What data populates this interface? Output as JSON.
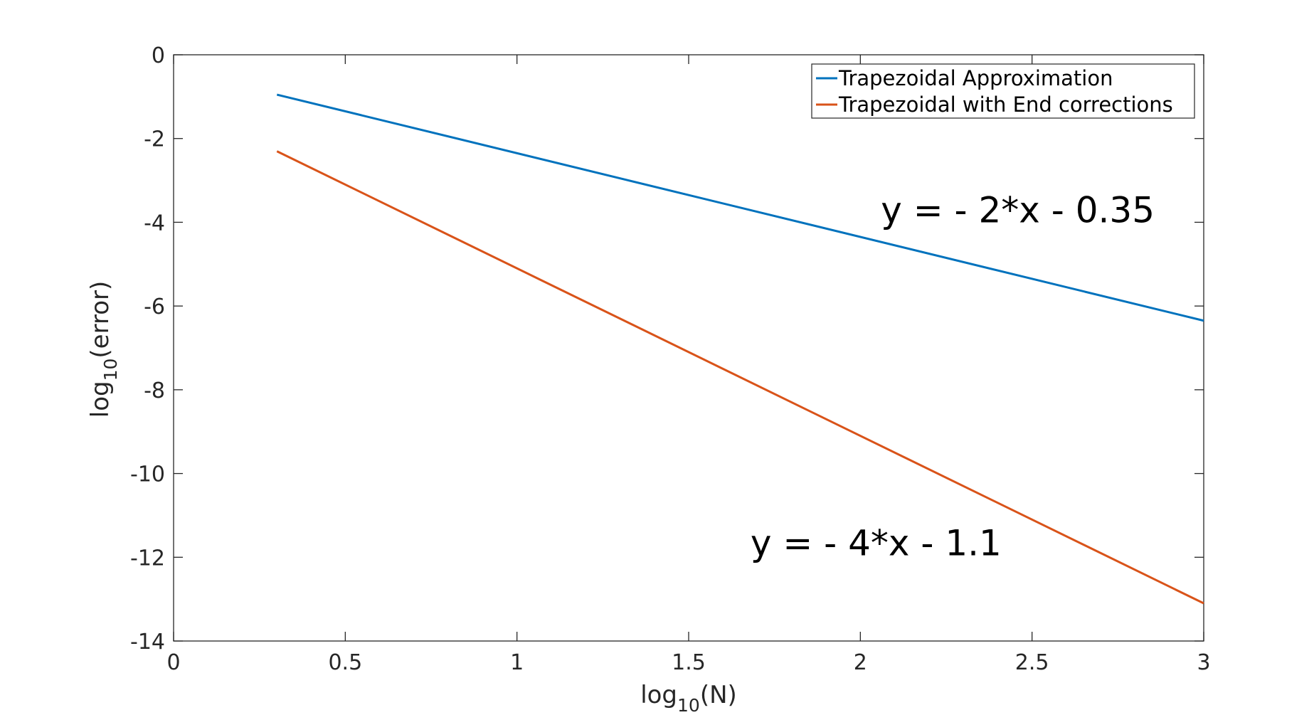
{
  "chart_data": {
    "type": "line",
    "title": "",
    "xlabel": {
      "base": "log",
      "subscript": "10",
      "suffix": "(N)"
    },
    "ylabel": {
      "base": "log",
      "subscript": "10",
      "suffix": "(error)"
    },
    "xlim": [
      0,
      3
    ],
    "ylim": [
      -14,
      0
    ],
    "xticks": [
      0,
      0.5,
      1,
      1.5,
      2,
      2.5,
      3
    ],
    "xtick_labels": [
      "0",
      "0.5",
      "1",
      "1.5",
      "2",
      "2.5",
      "3"
    ],
    "yticks": [
      0,
      -2,
      -4,
      -6,
      -8,
      -10,
      -12,
      -14
    ],
    "ytick_labels": [
      "0",
      "-2",
      "-4",
      "-6",
      "-8",
      "-10",
      "-12",
      "-14"
    ],
    "grid": false,
    "legend_position": "top-right",
    "series": [
      {
        "name": "Trapezoidal Approximation",
        "color": "#0072BD",
        "x": [
          0.301,
          3
        ],
        "y": [
          -0.952,
          -6.35
        ]
      },
      {
        "name": "Trapezoidal with End corrections",
        "color": "#D95319",
        "x": [
          0.301,
          3
        ],
        "y": [
          -2.304,
          -13.1
        ]
      }
    ],
    "annotations": [
      {
        "text": "y = - 2*x - 0.35",
        "x": 2.06,
        "y": -4.0
      },
      {
        "text": "y = - 4*x - 1.1",
        "x": 1.68,
        "y": -11.95
      }
    ]
  }
}
